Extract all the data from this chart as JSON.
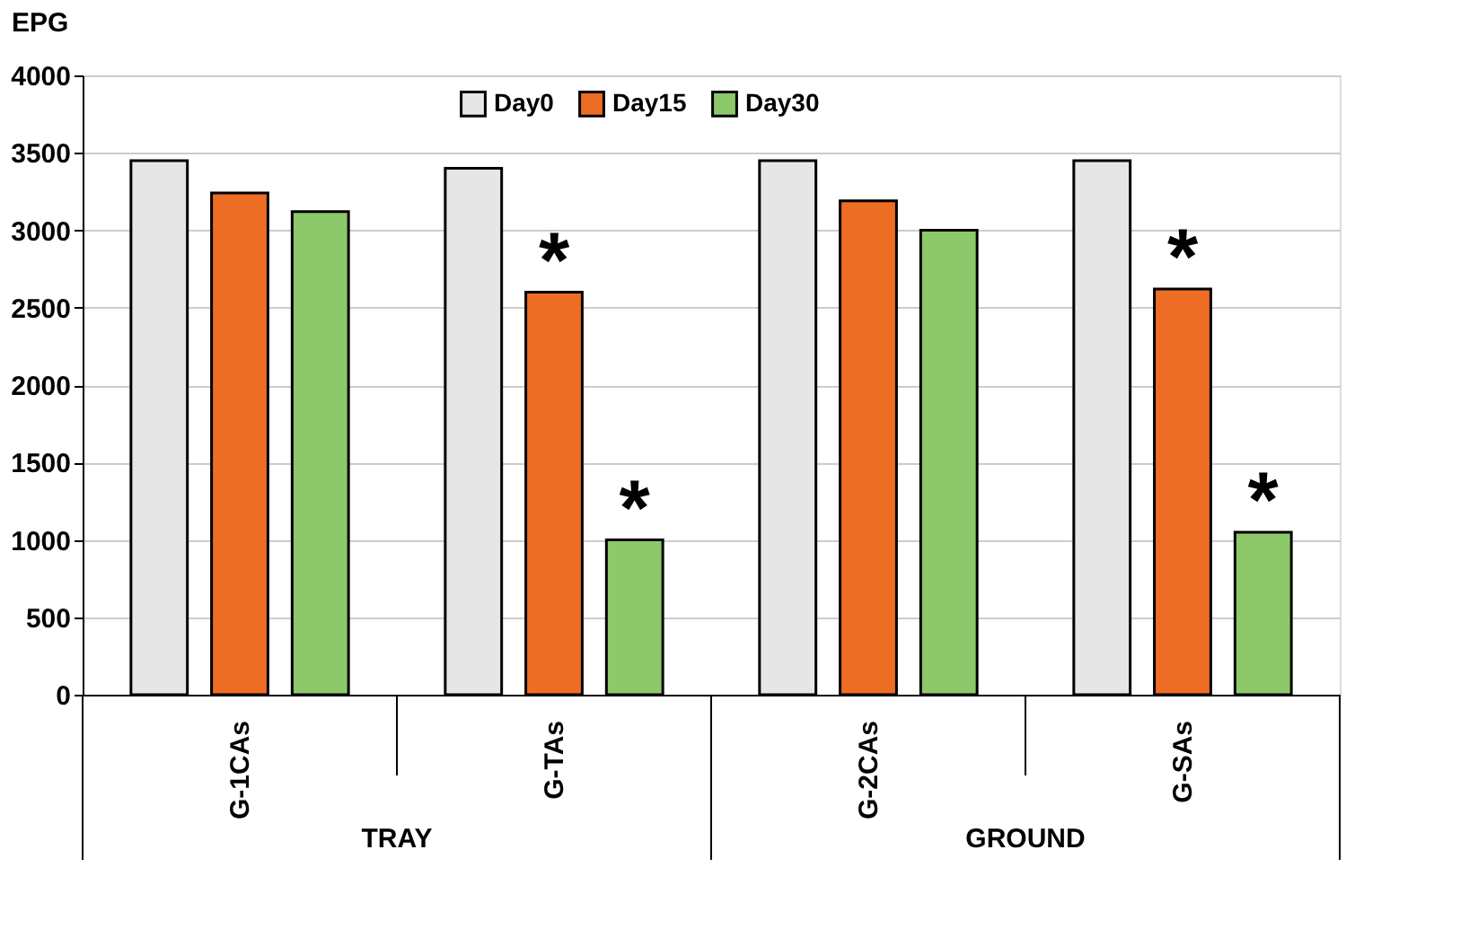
{
  "chart_data": {
    "type": "bar",
    "ylabel": "EPG",
    "categories": [
      "G-1CAs",
      "G-TAs",
      "G-2CAs",
      "G-SAs"
    ],
    "series": [
      {
        "name": "Day0",
        "color": "#e6e6e6",
        "values": [
          3450,
          3400,
          3450,
          3450
        ]
      },
      {
        "name": "Day15",
        "color": "#ed6d25",
        "values": [
          3240,
          2600,
          3190,
          2620
        ],
        "value_labels": [
          null,
          "*",
          null,
          "*"
        ]
      },
      {
        "name": "Day30",
        "color": "#8dc86b",
        "values": [
          3120,
          1000,
          3000,
          1050
        ],
        "value_labels": [
          null,
          "*",
          null,
          "*"
        ]
      }
    ],
    "ylim": [
      0,
      4000
    ],
    "yticks": [
      0,
      500,
      1000,
      1500,
      2000,
      2500,
      3000,
      3500,
      4000
    ],
    "grid": "y",
    "legend": "top",
    "annotations": [
      "TRAY",
      "GROUND"
    ]
  }
}
